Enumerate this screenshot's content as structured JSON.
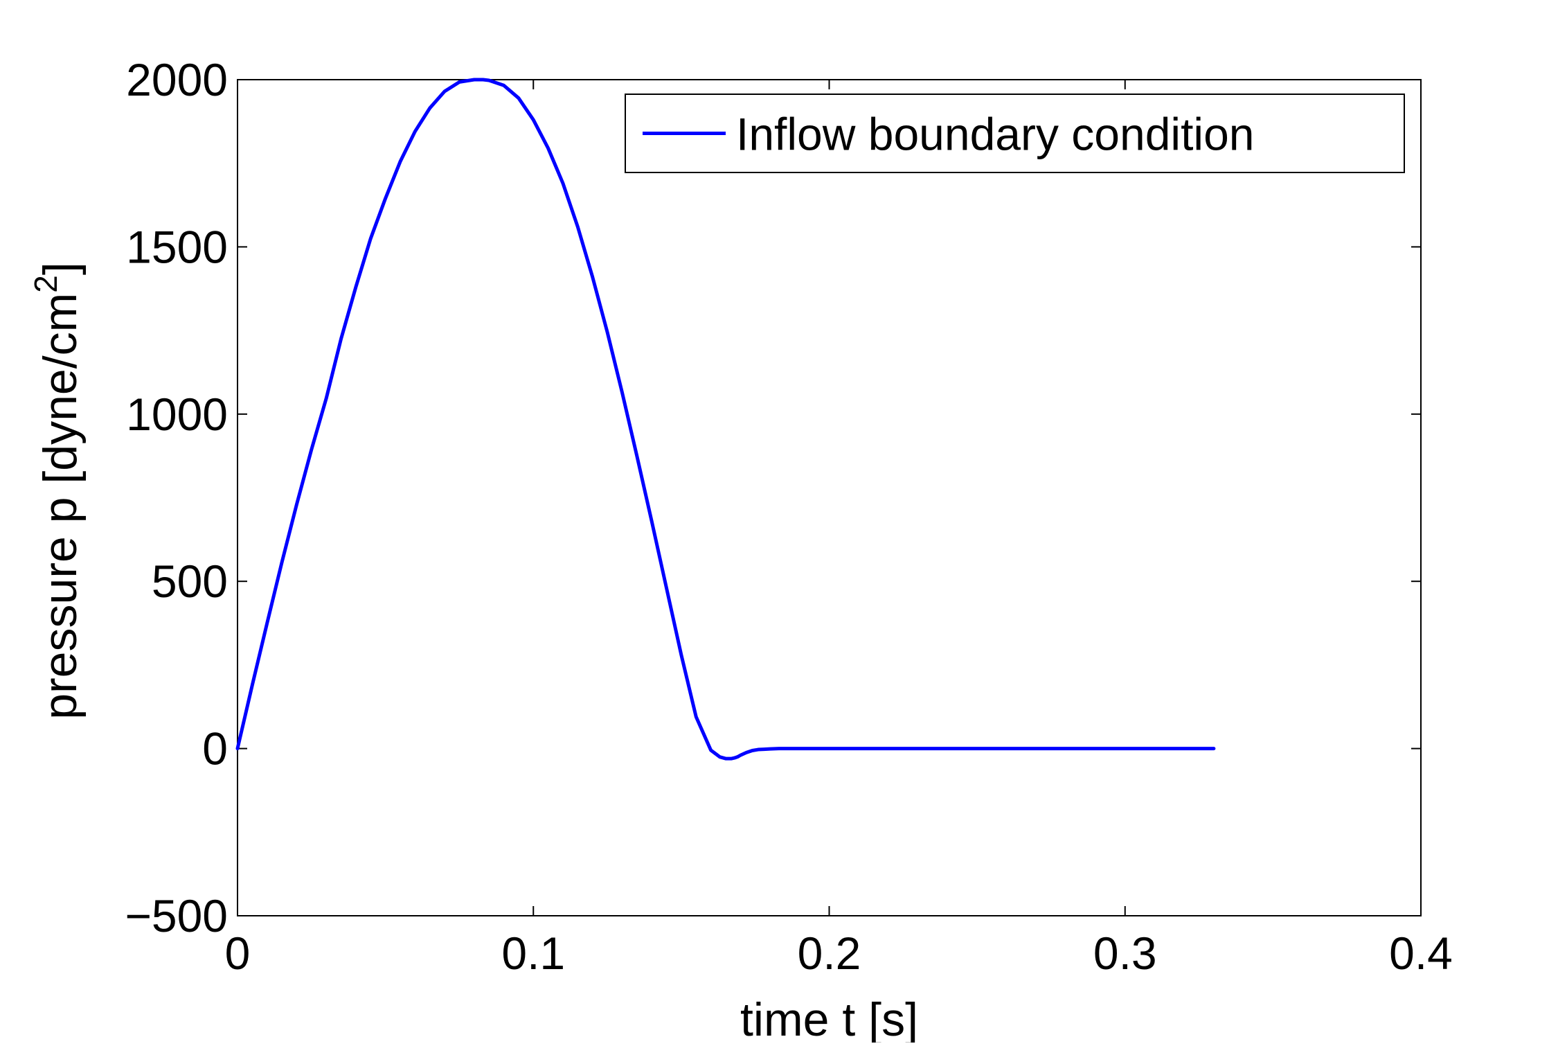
{
  "chart_data": {
    "type": "line",
    "title": "",
    "xlabel": "time t [s]",
    "ylabel": {
      "main": "pressure p [dyne/cm",
      "superscript": "2",
      "close": "]"
    },
    "xlim": [
      0,
      0.4
    ],
    "ylim": [
      -500,
      2000
    ],
    "xticks": [
      0,
      0.1,
      0.2,
      0.3,
      0.4
    ],
    "xtick_labels": [
      "0",
      "0.1",
      "0.2",
      "0.3",
      "0.4"
    ],
    "yticks": [
      -500,
      0,
      500,
      1000,
      1500,
      2000
    ],
    "ytick_labels": [
      "−500",
      "0",
      "500",
      "1000",
      "1500",
      "2000"
    ],
    "grid": false,
    "legend_position": "top-right",
    "series": [
      {
        "name": "Inflow boundary condition",
        "color": "#0000ff",
        "x": [
          0,
          0.005,
          0.01,
          0.015,
          0.02,
          0.025,
          0.03,
          0.035,
          0.04,
          0.045,
          0.05,
          0.055,
          0.06,
          0.065,
          0.07,
          0.075,
          0.08,
          0.083,
          0.085,
          0.09,
          0.095,
          0.1,
          0.105,
          0.11,
          0.115,
          0.12,
          0.125,
          0.13,
          0.135,
          0.14,
          0.145,
          0.15,
          0.155,
          0.16,
          0.163,
          0.165,
          0.167,
          0.168,
          0.169,
          0.17,
          0.172,
          0.174,
          0.176,
          0.178,
          0.18,
          0.183,
          0.186,
          0.19,
          0.2,
          0.22,
          0.25,
          0.28,
          0.31,
          0.33
        ],
        "values": [
          0,
          190,
          375,
          557,
          730,
          894,
          1047,
          1225,
          1380,
          1525,
          1645,
          1755,
          1845,
          1915,
          1965,
          1993,
          2000,
          2000,
          1998,
          1983,
          1945,
          1880,
          1795,
          1690,
          1560,
          1410,
          1245,
          1065,
          875,
          680,
          480,
          280,
          95,
          -5,
          -25,
          -30,
          -30,
          -28,
          -25,
          -20,
          -12,
          -6,
          -3,
          -2,
          -1,
          0,
          0,
          0,
          0,
          0,
          0,
          0,
          0,
          0
        ]
      }
    ]
  }
}
